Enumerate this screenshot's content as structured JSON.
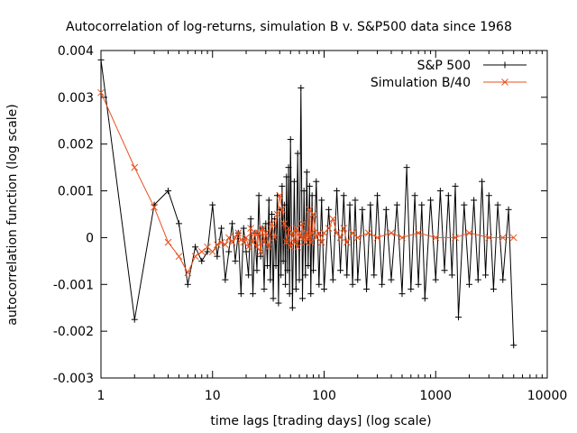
{
  "chart_data": {
    "type": "line",
    "title": "Autocorrelation of log-returns, simulation B v. S&P500 data since 1968",
    "xlabel": "time lags [trading days] (log scale)",
    "ylabel": "autocorrelation function (log scale)",
    "x_scale": "log",
    "xlim": [
      1,
      10000
    ],
    "ylim": [
      -0.003,
      0.004
    ],
    "x_ticks": [
      {
        "value": 1,
        "label": "1"
      },
      {
        "value": 10,
        "label": "10"
      },
      {
        "value": 100,
        "label": "100"
      },
      {
        "value": 1000,
        "label": "1000"
      },
      {
        "value": 10000,
        "label": "10000"
      }
    ],
    "y_ticks": [
      {
        "value": 0.004,
        "label": "0.004"
      },
      {
        "value": 0.003,
        "label": "0.003"
      },
      {
        "value": 0.002,
        "label": "0.002"
      },
      {
        "value": 0.001,
        "label": "0.001"
      },
      {
        "value": 0,
        "label": "0"
      },
      {
        "value": -0.001,
        "label": "-0.001"
      },
      {
        "value": -0.002,
        "label": "-0.002"
      },
      {
        "value": -0.003,
        "label": "-0.003"
      }
    ],
    "grid": false,
    "legend_position": "top-right",
    "series": [
      {
        "name": "S&P 500",
        "color": "#000000",
        "marker": "plus",
        "x": [
          1,
          2,
          3,
          4,
          5,
          6,
          7,
          8,
          9,
          10,
          11,
          12,
          13,
          14,
          15,
          16,
          17,
          18,
          19,
          20,
          21,
          22,
          23,
          24,
          25,
          26,
          27,
          28,
          29,
          30,
          31,
          32,
          33,
          34,
          35,
          36,
          37,
          38,
          39,
          40,
          41,
          42,
          43,
          44,
          45,
          46,
          47,
          48,
          49,
          50,
          52,
          54,
          56,
          58,
          60,
          62,
          64,
          66,
          68,
          70,
          72,
          74,
          76,
          78,
          80,
          85,
          90,
          95,
          100,
          110,
          120,
          130,
          140,
          150,
          160,
          170,
          180,
          190,
          200,
          220,
          240,
          260,
          280,
          300,
          330,
          360,
          400,
          450,
          500,
          550,
          600,
          650,
          700,
          750,
          800,
          900,
          1000,
          1100,
          1200,
          1300,
          1400,
          1500,
          1600,
          1800,
          2000,
          2200,
          2400,
          2600,
          2800,
          3000,
          3300,
          3600,
          4000,
          4500,
          5000
        ],
        "y": [
          0.0038,
          -0.00175,
          0.0007,
          0.001,
          0.0003,
          -0.001,
          -0.0002,
          -0.0005,
          -0.0003,
          0.0007,
          -0.0004,
          0.0002,
          -0.0009,
          -0.0003,
          0.0003,
          -0.0005,
          0.0001,
          -0.0012,
          0.0002,
          -0.0003,
          -0.0008,
          0.0004,
          -0.0012,
          0.0001,
          -0.0007,
          0.0009,
          -0.0004,
          0.0002,
          -0.0011,
          0.0003,
          -0.0006,
          0.0008,
          -0.0009,
          0.0005,
          -0.0013,
          0.0004,
          -0.0006,
          0.0009,
          -0.0014,
          0.0006,
          -0.0008,
          0.0011,
          -0.0005,
          0.0007,
          -0.001,
          0.0013,
          -0.0007,
          0.0015,
          -0.0012,
          0.0021,
          -0.0015,
          0.0012,
          -0.0011,
          0.0018,
          -0.0009,
          0.0032,
          -0.0013,
          0.001,
          -0.0008,
          0.0014,
          -0.0006,
          0.0011,
          -0.0012,
          0.0009,
          -0.0007,
          0.0012,
          -0.001,
          0.0008,
          -0.0011,
          0.0006,
          -0.0009,
          0.001,
          -0.0007,
          0.0009,
          -0.0008,
          0.0007,
          -0.001,
          0.0008,
          -0.0009,
          0.0006,
          -0.0011,
          0.0007,
          -0.0008,
          0.0009,
          -0.001,
          0.0006,
          -0.0009,
          0.0007,
          -0.0012,
          0.0015,
          -0.0011,
          0.0009,
          -0.001,
          0.0007,
          -0.0013,
          0.0008,
          -0.0009,
          0.001,
          -0.0007,
          0.0009,
          -0.0008,
          0.0011,
          -0.0017,
          0.0007,
          -0.001,
          0.0008,
          -0.0009,
          0.0012,
          -0.0008,
          0.0009,
          -0.0011,
          0.0007,
          -0.0009,
          0.0006,
          -0.0023
        ]
      },
      {
        "name": "Simulation B/40",
        "color": "#e8501c",
        "marker": "cross",
        "x": [
          1,
          2,
          3,
          4,
          5,
          6,
          7,
          8,
          9,
          10,
          11,
          12,
          13,
          14,
          15,
          16,
          17,
          18,
          19,
          20,
          21,
          22,
          23,
          24,
          25,
          26,
          27,
          28,
          29,
          30,
          32,
          34,
          36,
          38,
          40,
          42,
          44,
          46,
          48,
          50,
          52,
          54,
          56,
          58,
          60,
          62,
          64,
          66,
          68,
          70,
          72,
          74,
          76,
          78,
          80,
          85,
          90,
          95,
          100,
          110,
          120,
          130,
          140,
          150,
          160,
          180,
          200,
          250,
          300,
          400,
          500,
          700,
          1000,
          1500,
          2000,
          3000,
          4000,
          5000
        ],
        "y": [
          0.0031,
          0.0015,
          0.00065,
          -0.0001,
          -0.0004,
          -0.00075,
          -0.0004,
          -0.0003,
          -0.0002,
          -0.0003,
          -0.00015,
          -0.0001,
          -0.00015,
          0.0,
          -0.0001,
          0.0,
          0.0001,
          -5e-05,
          -0.0001,
          0.0,
          -0.0002,
          0.0002,
          -0.0001,
          0.0001,
          -0.0002,
          0.0001,
          -0.0003,
          0.0002,
          -0.0001,
          0.0001,
          -0.0002,
          0.0003,
          0.0,
          0.0005,
          0.0009,
          0.0006,
          0.0003,
          -0.0001,
          0.0002,
          -0.0002,
          0.0001,
          -0.0001,
          0.0002,
          -0.0002,
          0.0001,
          0.0,
          0.0003,
          0.0,
          -0.0001,
          0.0001,
          0.0,
          0.0006,
          -0.0001,
          0.0001,
          0.0005,
          0.0,
          0.0001,
          -0.0001,
          0.0001,
          0.0002,
          0.0004,
          0.0001,
          0.0,
          0.0002,
          -0.0001,
          0.0001,
          0.0,
          0.0001,
          0.0,
          0.0001,
          0.0,
          0.0001,
          0.0,
          0.0,
          0.0001,
          0.0,
          0.0,
          0.0
        ]
      }
    ]
  }
}
